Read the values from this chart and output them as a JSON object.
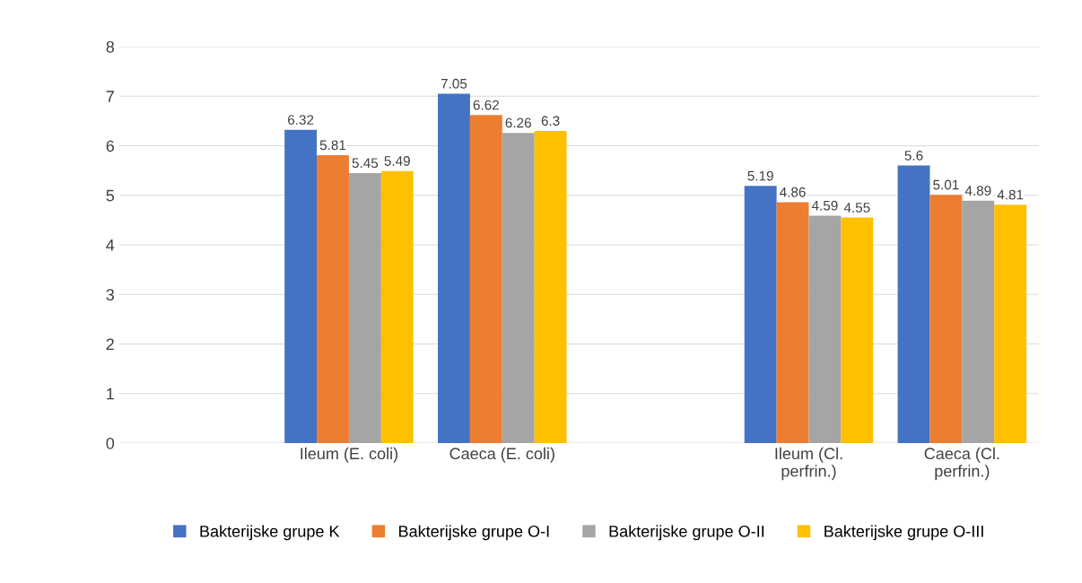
{
  "chart_data": {
    "type": "bar",
    "categories": [
      null,
      "Ileum (E. coli)",
      "Caeca (E. coli)",
      null,
      "Ileum (Cl.\nperfrin.)",
      "Caeca (Cl.\nperfrin.)"
    ],
    "series": [
      {
        "name": "Bakterijske grupe K",
        "color": "#4472c4",
        "values": [
          null,
          6.32,
          7.05,
          null,
          5.19,
          5.6
        ]
      },
      {
        "name": "Bakterijske grupe O-I",
        "color": "#ed7d31",
        "values": [
          null,
          5.81,
          6.62,
          null,
          4.86,
          5.01
        ]
      },
      {
        "name": "Bakterijske grupe O-II",
        "color": "#a5a5a5",
        "values": [
          null,
          5.45,
          6.26,
          null,
          4.59,
          4.89
        ]
      },
      {
        "name": "Bakterijske grupe O-III",
        "color": "#ffc000",
        "values": [
          null,
          5.49,
          6.3,
          null,
          4.55,
          4.81
        ]
      }
    ],
    "ylim": [
      0,
      8
    ],
    "yticks": [
      0,
      1,
      2,
      3,
      4,
      5,
      6,
      7,
      8
    ],
    "grid": "y",
    "legend": "bottom",
    "data_labels": true
  }
}
